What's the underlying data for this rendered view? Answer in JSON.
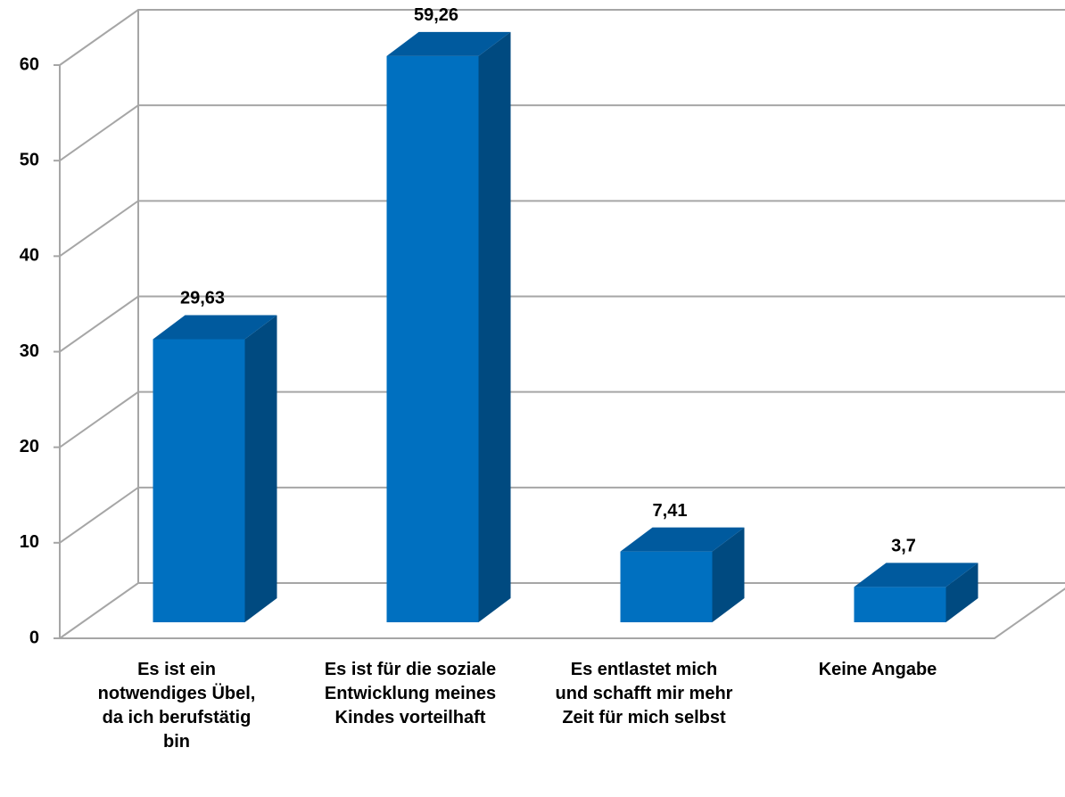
{
  "chart_data": {
    "type": "bar",
    "categories": [
      "Es ist ein notwendiges Übel, da ich berufstätig bin",
      "Es ist für die soziale Entwicklung meines Kindes vorteilhaft",
      "Es entlastet mich und schafft mir mehr Zeit für mich selbst",
      "Keine Angabe"
    ],
    "values": [
      29.63,
      59.26,
      7.41,
      3.7
    ],
    "value_labels": [
      "29,63",
      "59,26",
      "7,41",
      "3,7"
    ],
    "color": "#0070c0",
    "ylim": [
      0,
      60
    ],
    "yticks": [
      0,
      10,
      20,
      30,
      40,
      50,
      60
    ],
    "grid": true
  }
}
